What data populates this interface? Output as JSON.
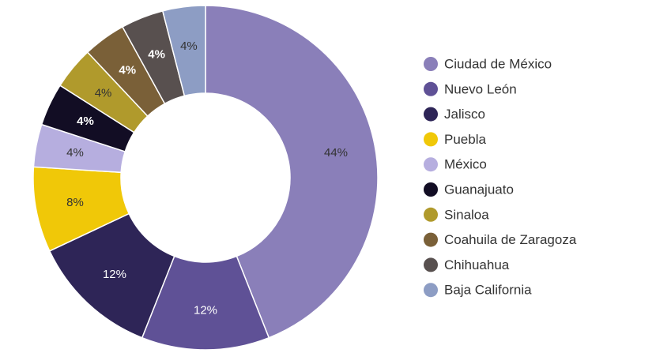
{
  "chart_data": {
    "type": "pie",
    "variant": "donut",
    "categories": [
      "Ciudad de México",
      "Nuevo León",
      "Jalisco",
      "Puebla",
      "México",
      "Guanajuato",
      "Sinaloa",
      "Coahuila de Zaragoza",
      "Chihuahua",
      "Baja California"
    ],
    "values": [
      44,
      12,
      12,
      8,
      4,
      4,
      4,
      4,
      4,
      4
    ],
    "value_labels": [
      "44%",
      "12%",
      "12%",
      "8%",
      "4%",
      "4%",
      "4%",
      "4%",
      "4%",
      "4%"
    ],
    "colors": [
      "#8a7fb9",
      "#5f5196",
      "#2e2557",
      "#f0c808",
      "#b6aedf",
      "#120d24",
      "#b09a2c",
      "#7a6038",
      "#58504f",
      "#8d9dc4"
    ],
    "label_colors": [
      "#333333",
      "#ffffff",
      "#ffffff",
      "#333333",
      "#333333",
      "#ffffff",
      "#333333",
      "#ffffff",
      "#ffffff",
      "#333333"
    ],
    "label_bold": [
      false,
      false,
      false,
      false,
      false,
      true,
      false,
      true,
      true,
      false
    ],
    "legend_position": "right",
    "title": "",
    "start_angle_deg": 0,
    "direction": "clockwise"
  }
}
